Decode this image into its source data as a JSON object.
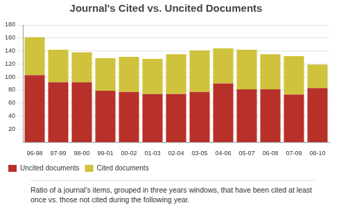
{
  "chart_data": {
    "type": "bar",
    "title": "Journal's Cited vs. Uncited Documents",
    "caption": "Ratio of a journal's items, grouped in three years windows, that have been cited at least once vs. those not cited during the following year.",
    "categories": [
      "96-98",
      "97-99",
      "98-00",
      "99-01",
      "00-02",
      "01-03",
      "02-04",
      "03-05",
      "04-06",
      "05-07",
      "06-08",
      "07-09",
      "08-10"
    ],
    "series": [
      {
        "name": "Uncited documents",
        "color": "#b8302a",
        "values": [
          103,
          92,
          92,
          79,
          77,
          74,
          74,
          77,
          90,
          81,
          81,
          73,
          83
        ]
      },
      {
        "name": "Cited documents",
        "color": "#cfc23c",
        "values": [
          58,
          50,
          46,
          50,
          54,
          54,
          61,
          64,
          54,
          61,
          54,
          59,
          36
        ]
      }
    ],
    "stacked": true,
    "ylim": [
      0,
      180
    ],
    "yticks": [
      20,
      40,
      60,
      80,
      100,
      120,
      140,
      160,
      180
    ],
    "grid": true,
    "legend": "bottom-left"
  }
}
